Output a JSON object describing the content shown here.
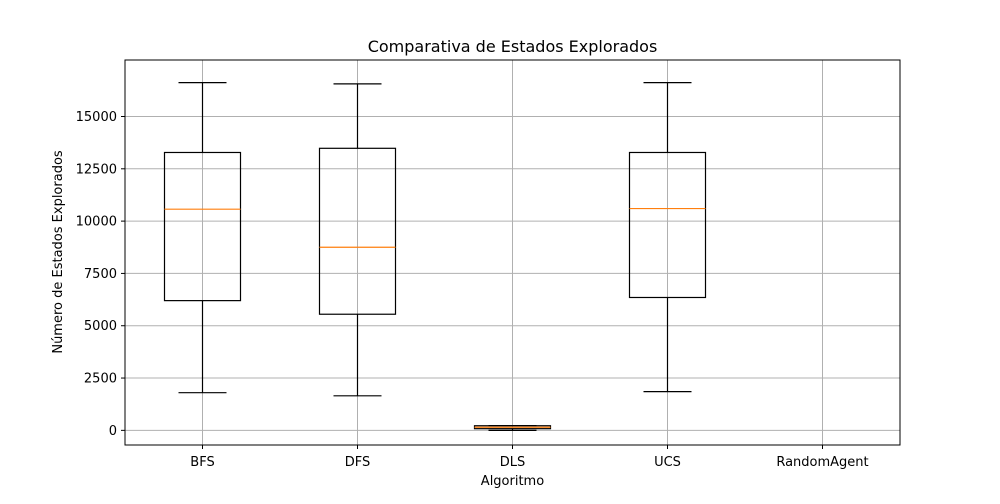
{
  "chart_data": {
    "type": "box",
    "title": "Comparativa de Estados Explorados",
    "xlabel": "Algoritmo",
    "ylabel": "Número de Estados Explorados",
    "ylim": [
      -700,
      17700
    ],
    "yticks": [
      0,
      2500,
      5000,
      7500,
      10000,
      12500,
      15000
    ],
    "ytick_labels": [
      "0",
      "2500",
      "5000",
      "7500",
      "10000",
      "12500",
      "15000"
    ],
    "grid": true,
    "categories": [
      "BFS",
      "DFS",
      "DLS",
      "UCS",
      "RandomAgent"
    ],
    "boxes": [
      {
        "category": "BFS",
        "whisker_low": 1800,
        "q1": 6200,
        "median": 10570,
        "q3": 13280,
        "whisker_high": 16620
      },
      {
        "category": "DFS",
        "whisker_low": 1650,
        "q1": 5550,
        "median": 8750,
        "q3": 13480,
        "whisker_high": 16560
      },
      {
        "category": "DLS",
        "whisker_low": 0,
        "q1": 80,
        "median": 150,
        "q3": 220,
        "whisker_high": 230
      },
      {
        "category": "UCS",
        "whisker_low": 1850,
        "q1": 6350,
        "median": 10600,
        "q3": 13280,
        "whisker_high": 16620
      },
      {
        "category": "RandomAgent",
        "empty": true
      }
    ],
    "colors": {
      "box": "#000000",
      "median": "#ff7f0e",
      "grid": "#b0b0b0",
      "background": "#ffffff"
    }
  }
}
